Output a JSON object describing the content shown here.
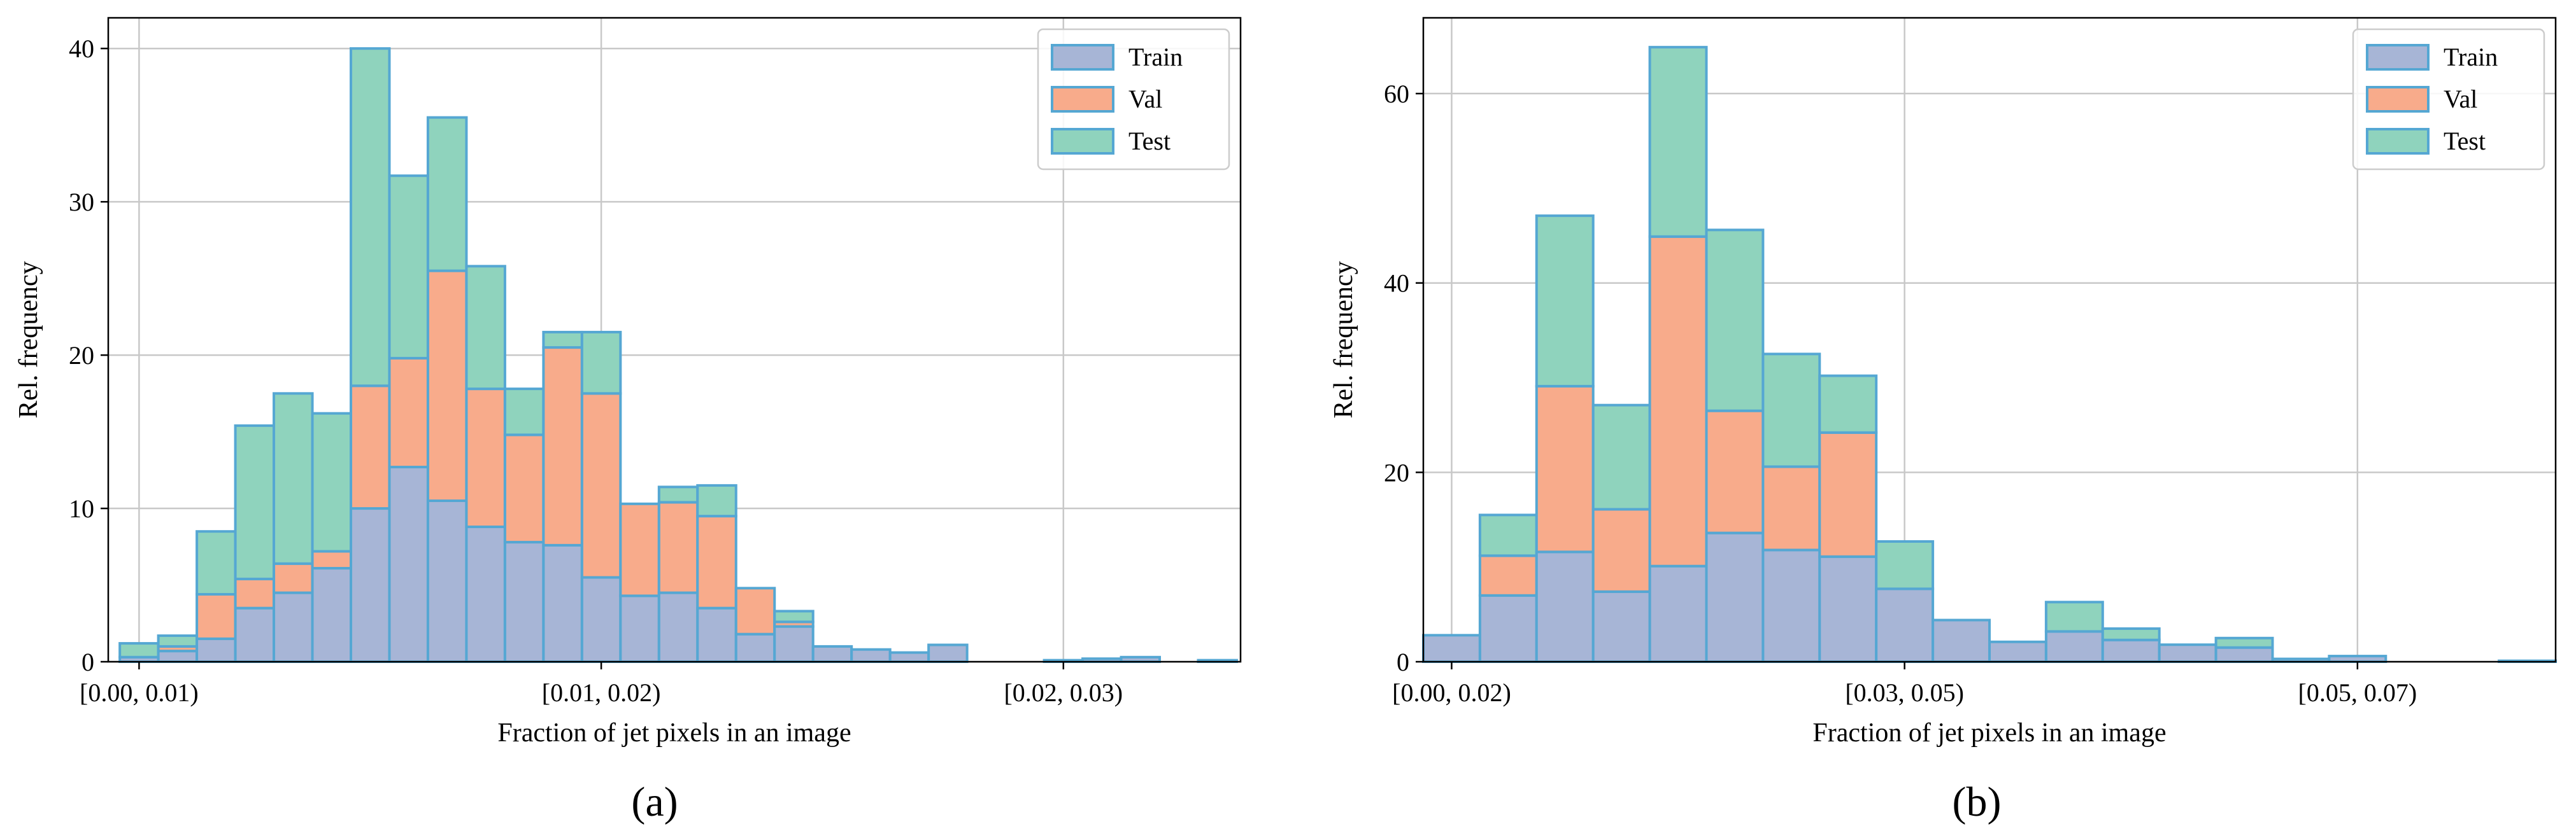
{
  "colors": {
    "train": "#a7b5d6",
    "val": "#f8ab8b",
    "test": "#8fd3bd",
    "edge": "#55a7d3",
    "grid": "#c8c8c8"
  },
  "chart_data": [
    {
      "type": "bar",
      "stacked": true,
      "panel_label": "(a)",
      "xlabel": "Fraction of jet pixels in an image",
      "ylabel": "Rel. frequency",
      "ylim": [
        0,
        42
      ],
      "yticks": [
        0,
        10,
        20,
        30,
        40
      ],
      "xlim": [
        -0.8,
        28.6
      ],
      "xticks": [
        {
          "pos": 0,
          "label": "[0.00, 0.01)"
        },
        {
          "pos": 12,
          "label": "[0.01, 0.02)"
        },
        {
          "pos": 24,
          "label": "[0.02, 0.03)"
        }
      ],
      "grid": true,
      "legend_location": "top-right",
      "legend": [
        "Train",
        "Val",
        "Test"
      ],
      "series": [
        {
          "name": "Train",
          "color": "train",
          "values": [
            0.3,
            0.7,
            1.5,
            3.5,
            4.5,
            6.1,
            10.0,
            12.7,
            10.5,
            8.8,
            7.8,
            7.6,
            5.5,
            4.3,
            4.5,
            3.5,
            1.8,
            2.3,
            1.0,
            0.8,
            0.6,
            1.1,
            0,
            0,
            0.1,
            0.2,
            0.3,
            0,
            0.1
          ]
        },
        {
          "name": "Val",
          "color": "val",
          "values": [
            0.0,
            0.3,
            2.9,
            1.9,
            1.9,
            1.1,
            8.0,
            7.1,
            15.0,
            9.0,
            7.0,
            12.9,
            12.0,
            6.0,
            5.9,
            6.0,
            3.0,
            0.3,
            0,
            0,
            0,
            0,
            0,
            0,
            0,
            0,
            0,
            0,
            0
          ]
        },
        {
          "name": "Test",
          "color": "test",
          "values": [
            0.9,
            0.7,
            4.1,
            10.0,
            11.1,
            9.0,
            22.0,
            11.9,
            10.0,
            8.0,
            3.0,
            1.0,
            4.0,
            0,
            1.0,
            2.0,
            0,
            0.7,
            0,
            0,
            0,
            0,
            0,
            0,
            0,
            0,
            0,
            0,
            0
          ]
        }
      ]
    },
    {
      "type": "bar",
      "stacked": true,
      "panel_label": "(b)",
      "xlabel": "Fraction of jet pixels in an image",
      "ylabel": "Rel. frequency",
      "ylim": [
        0,
        68
      ],
      "yticks": [
        0,
        20,
        40,
        60
      ],
      "xlim": [
        -0.5,
        19.5
      ],
      "xticks": [
        {
          "pos": 0,
          "label": "[0.00, 0.02)"
        },
        {
          "pos": 8,
          "label": "[0.03, 0.05)"
        },
        {
          "pos": 16,
          "label": "[0.05, 0.07)"
        }
      ],
      "grid": true,
      "legend_location": "top-right",
      "legend": [
        "Train",
        "Val",
        "Test"
      ],
      "series": [
        {
          "name": "Train",
          "color": "train",
          "values": [
            2.8,
            7.0,
            11.6,
            7.4,
            10.1,
            13.6,
            11.8,
            11.1,
            7.7,
            4.4,
            2.1,
            3.2,
            2.3,
            1.8,
            1.5,
            0.3,
            0.6,
            0,
            0,
            0.1
          ]
        },
        {
          "name": "Val",
          "color": "val",
          "values": [
            0,
            4.2,
            17.5,
            8.7,
            34.8,
            12.9,
            8.8,
            13.1,
            0,
            0,
            0,
            0,
            0,
            0,
            0,
            0,
            0,
            0,
            0,
            0
          ]
        },
        {
          "name": "Test",
          "color": "test",
          "values": [
            0,
            4.3,
            18.0,
            11.0,
            20.0,
            19.1,
            11.9,
            6.0,
            5.0,
            0,
            0,
            3.1,
            1.2,
            0,
            1.0,
            0,
            0,
            0,
            0,
            0
          ]
        }
      ]
    }
  ]
}
